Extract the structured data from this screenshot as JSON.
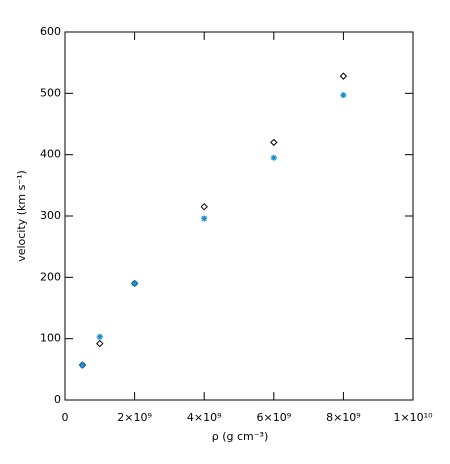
{
  "chart_data": {
    "type": "scatter",
    "x_label": "ρ (g cm⁻³)",
    "y_label": "velocity (km s⁻¹)",
    "x": [
      500000000,
      1000000000,
      2000000000,
      4000000000,
      6000000000,
      8000000000
    ],
    "series": [
      {
        "color": "#000000",
        "marker": "diamond",
        "values": [
          57,
          92,
          190,
          315,
          420,
          528
        ]
      },
      {
        "color": "#1f8fd0",
        "marker": "asterisk",
        "values": [
          57,
          103,
          190,
          296,
          395,
          497
        ]
      }
    ],
    "xlim": [
      0,
      10000000000
    ],
    "xticks": [
      0,
      {
        "value": 2000000000,
        "label": "2×10⁹"
      },
      {
        "value": 4000000000,
        "label": "4×10⁹"
      },
      {
        "value": 6000000000,
        "label": "6×10⁹"
      },
      {
        "value": 8000000000,
        "label": "8×10⁹"
      },
      {
        "value": 10000000000,
        "label": "1×10¹⁰"
      }
    ],
    "ylim": [
      0,
      600
    ],
    "yticks": [
      0,
      100,
      200,
      300,
      400,
      500,
      600
    ]
  }
}
